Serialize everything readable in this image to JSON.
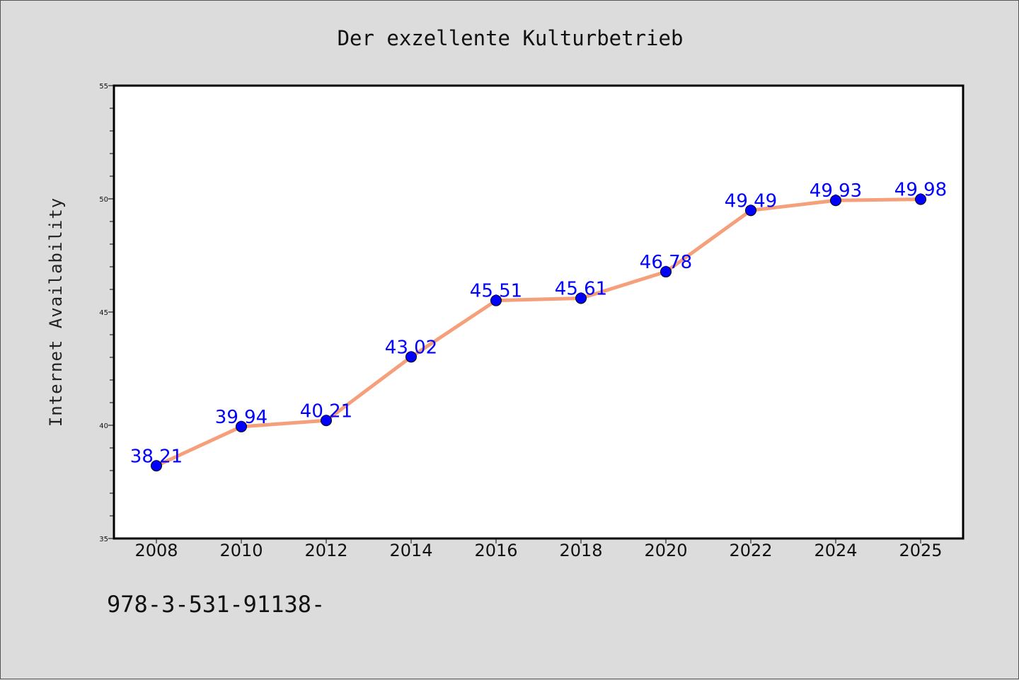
{
  "footer": {
    "code": "978-3-531-91138-"
  },
  "chart_data": {
    "type": "line",
    "title": "Der exzellente Kulturbetrieb",
    "xlabel": "",
    "ylabel": "Internet Availability",
    "categories": [
      "2008",
      "2010",
      "2012",
      "2014",
      "2016",
      "2018",
      "2020",
      "2022",
      "2024",
      "2025"
    ],
    "series": [
      {
        "values": [
          38.21,
          39.94,
          40.21,
          43.02,
          45.51,
          45.61,
          46.78,
          49.49,
          49.93,
          49.98
        ],
        "labels": [
          "38.21",
          "39.94",
          "40.21",
          "43.02",
          "45.51",
          "45.61",
          "46.78",
          "49.49",
          "49.93",
          "49.98"
        ]
      }
    ],
    "ylim": [
      35,
      55
    ],
    "yticks": [
      35,
      40,
      45,
      50,
      55
    ],
    "ytick_labels": [
      "35",
      "40",
      "45",
      "50",
      "55"
    ],
    "grid": false,
    "colors": {
      "line": "#f5a07a",
      "marker": "#0000ff",
      "label": "#0000ff",
      "plot_background": "#ffffff",
      "figure_background": "#dcdcdc"
    }
  }
}
